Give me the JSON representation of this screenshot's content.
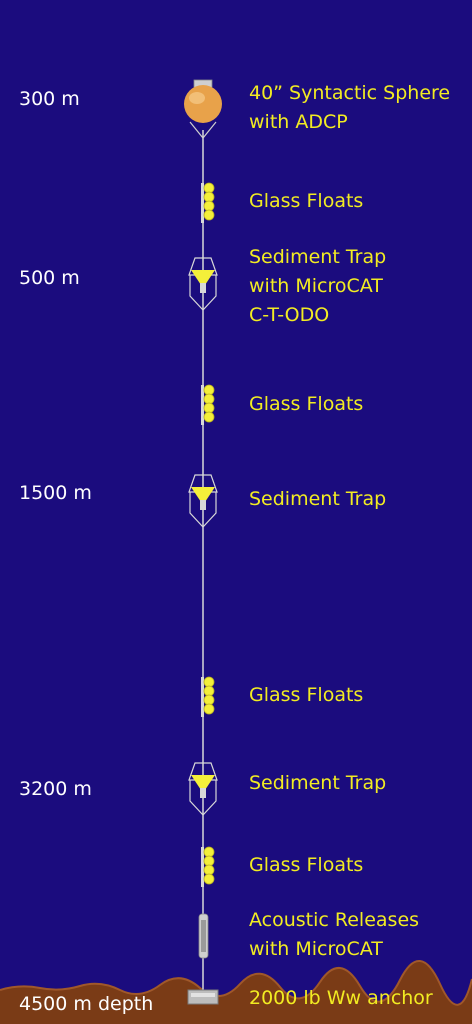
{
  "colors": {
    "background": "#1b0c7e",
    "depth_text": "#ffffff",
    "instrument_text": "#f2ec22",
    "float_yellow": "#f4ef3a",
    "sphere_orange": "#e8a24a",
    "seafloor_brown": "#7a3b16",
    "mooring_line": "#d8d8d8"
  },
  "depths": [
    {
      "label": "300 m"
    },
    {
      "label": "500 m"
    },
    {
      "label": "1500 m"
    },
    {
      "label": "3200 m"
    },
    {
      "label": "4500 m depth"
    }
  ],
  "instruments": [
    {
      "label": "40” Syntactic Sphere\nwith ADCP",
      "icon": "syntactic-sphere"
    },
    {
      "label": "Glass Floats",
      "icon": "glass-floats"
    },
    {
      "label": "Sediment Trap\nwith MicroCAT\nC-T-ODO",
      "icon": "sediment-trap"
    },
    {
      "label": "Glass Floats",
      "icon": "glass-floats"
    },
    {
      "label": "Sediment Trap",
      "icon": "sediment-trap"
    },
    {
      "label": "Glass Floats",
      "icon": "glass-floats"
    },
    {
      "label": "Sediment Trap",
      "icon": "sediment-trap"
    },
    {
      "label": "Glass Floats",
      "icon": "glass-floats"
    },
    {
      "label": "Acoustic Releases\nwith MicroCAT",
      "icon": "acoustic-release"
    },
    {
      "label": "2000 lb Ww anchor",
      "icon": "anchor"
    }
  ]
}
